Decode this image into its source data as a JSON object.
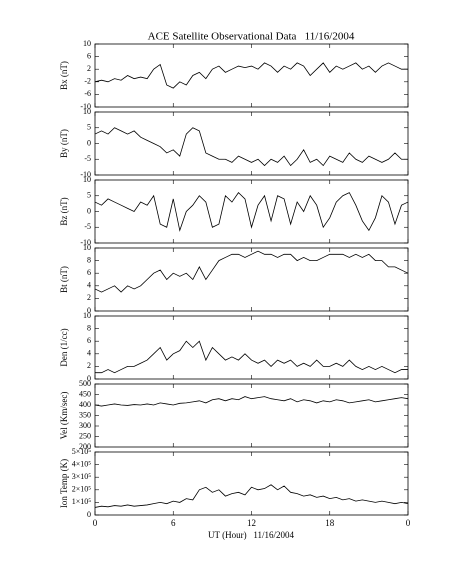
{
  "chart_data": [
    {
      "type": "line",
      "title": "ACE Satellite Observational Data   11/16/2004",
      "ylabel": "Bx (nT)",
      "color": "#000000",
      "x": [
        0,
        0.5,
        1,
        1.5,
        2,
        2.5,
        3,
        3.5,
        4,
        4.5,
        5,
        5.5,
        6,
        6.5,
        7,
        7.5,
        8,
        8.5,
        9,
        9.5,
        10,
        10.5,
        11,
        11.5,
        12,
        12.5,
        13,
        13.5,
        14,
        14.5,
        15,
        15.5,
        16,
        16.5,
        17,
        17.5,
        18,
        18.5,
        19,
        19.5,
        20,
        20.5,
        21,
        21.5,
        22,
        22.5,
        23,
        23.5,
        24
      ],
      "values": [
        -2,
        -1.5,
        -2,
        -1,
        -1.5,
        0,
        -1,
        -0.5,
        -1,
        2,
        3.5,
        -3,
        -4,
        -2,
        -3,
        0,
        1,
        -1,
        2,
        3,
        1,
        2,
        3,
        2.5,
        3,
        2,
        4,
        3,
        1,
        3,
        2,
        4,
        3,
        0,
        2,
        4,
        1,
        3,
        2,
        3,
        4,
        2,
        3,
        1,
        3,
        4,
        3,
        2,
        2
      ],
      "ylim": [
        -10,
        10
      ],
      "yticks": [
        -10,
        -6,
        -2,
        2,
        6,
        10
      ]
    },
    {
      "type": "line",
      "ylabel": "By (nT)",
      "color": "#000000",
      "x": [
        0,
        0.5,
        1,
        1.5,
        2,
        2.5,
        3,
        3.5,
        4,
        4.5,
        5,
        5.5,
        6,
        6.5,
        7,
        7.5,
        8,
        8.5,
        9,
        9.5,
        10,
        10.5,
        11,
        11.5,
        12,
        12.5,
        13,
        13.5,
        14,
        14.5,
        15,
        15.5,
        16,
        16.5,
        17,
        17.5,
        18,
        18.5,
        19,
        19.5,
        20,
        20.5,
        21,
        21.5,
        22,
        22.5,
        23,
        23.5,
        24
      ],
      "values": [
        3,
        4,
        3,
        5,
        4,
        3,
        4,
        2,
        1,
        0,
        -1,
        -3,
        -2,
        -4,
        3,
        5,
        4,
        -3,
        -4,
        -5,
        -5,
        -6,
        -4,
        -5,
        -6,
        -5,
        -7,
        -5,
        -6,
        -4,
        -7,
        -5,
        -2,
        -6,
        -5,
        -7,
        -4,
        -5,
        -6,
        -3,
        -5,
        -6,
        -4,
        -5,
        -6,
        -5,
        -3,
        -5,
        -5
      ],
      "ylim": [
        -10,
        10
      ],
      "yticks": [
        -10,
        -5,
        0,
        5,
        10
      ]
    },
    {
      "type": "line",
      "ylabel": "Bz (nT)",
      "color": "#000000",
      "x": [
        0,
        0.5,
        1,
        1.5,
        2,
        2.5,
        3,
        3.5,
        4,
        4.5,
        5,
        5.5,
        6,
        6.5,
        7,
        7.5,
        8,
        8.5,
        9,
        9.5,
        10,
        10.5,
        11,
        11.5,
        12,
        12.5,
        13,
        13.5,
        14,
        14.5,
        15,
        15.5,
        16,
        16.5,
        17,
        17.5,
        18,
        18.5,
        19,
        19.5,
        20,
        20.5,
        21,
        21.5,
        22,
        22.5,
        23,
        23.5,
        24
      ],
      "values": [
        3,
        2,
        4,
        3,
        2,
        1,
        0,
        3,
        2,
        5,
        -4,
        -5,
        4,
        -6,
        0,
        2,
        5,
        3,
        -5,
        -4,
        5,
        3,
        6,
        4,
        -5,
        2,
        5,
        -3,
        5,
        4,
        -4,
        3,
        0,
        5,
        2,
        -5,
        -2,
        3,
        5,
        6,
        2,
        -3,
        -6,
        -2,
        5,
        3,
        -4,
        2,
        3
      ],
      "ylim": [
        -10,
        10
      ],
      "yticks": [
        -10,
        -5,
        0,
        5,
        10
      ]
    },
    {
      "type": "line",
      "ylabel": "Bt (nT)",
      "color": "#000000",
      "x": [
        0,
        0.5,
        1,
        1.5,
        2,
        2.5,
        3,
        3.5,
        4,
        4.5,
        5,
        5.5,
        6,
        6.5,
        7,
        7.5,
        8,
        8.5,
        9,
        9.5,
        10,
        10.5,
        11,
        11.5,
        12,
        12.5,
        13,
        13.5,
        14,
        14.5,
        15,
        15.5,
        16,
        16.5,
        17,
        17.5,
        18,
        18.5,
        19,
        19.5,
        20,
        20.5,
        21,
        21.5,
        22,
        22.5,
        23,
        23.5,
        24
      ],
      "values": [
        3.5,
        3,
        3.5,
        4,
        3,
        4,
        3.5,
        4,
        5,
        6,
        6.5,
        5,
        6,
        5.5,
        6,
        5,
        7,
        5,
        6.5,
        8,
        8.5,
        9,
        9,
        8.5,
        9,
        9.5,
        9,
        9,
        8.5,
        9,
        9,
        8,
        8.5,
        8,
        8,
        8.5,
        9,
        9,
        9,
        8.5,
        9,
        8.5,
        9,
        8,
        8,
        7,
        7,
        6.5,
        6
      ],
      "ylim": [
        0,
        10
      ],
      "yticks": [
        0,
        2,
        4,
        6,
        8,
        10
      ]
    },
    {
      "type": "line",
      "ylabel": "Den (1/cc)",
      "color": "#000000",
      "x": [
        0,
        0.5,
        1,
        1.5,
        2,
        2.5,
        3,
        3.5,
        4,
        4.5,
        5,
        5.5,
        6,
        6.5,
        7,
        7.5,
        8,
        8.5,
        9,
        9.5,
        10,
        10.5,
        11,
        11.5,
        12,
        12.5,
        13,
        13.5,
        14,
        14.5,
        15,
        15.5,
        16,
        16.5,
        17,
        17.5,
        18,
        18.5,
        19,
        19.5,
        20,
        20.5,
        21,
        21.5,
        22,
        22.5,
        23,
        23.5,
        24
      ],
      "values": [
        1,
        1,
        1.5,
        1,
        1.5,
        2,
        2,
        2.5,
        3,
        4,
        5,
        3,
        4,
        4.5,
        6,
        5,
        6,
        3,
        5,
        4,
        3,
        3.5,
        3,
        4,
        3,
        2.5,
        3,
        2,
        3,
        2.5,
        3,
        2,
        2.5,
        2,
        3,
        2,
        2,
        2.5,
        2,
        3,
        2,
        1.5,
        2,
        1.5,
        2,
        1.5,
        1,
        1.5,
        1.5
      ],
      "ylim": [
        0,
        10
      ],
      "yticks": [
        0,
        2,
        4,
        6,
        8,
        10
      ]
    },
    {
      "type": "line",
      "ylabel": "Vel (Km/sec)",
      "color": "#000000",
      "x": [
        0,
        0.5,
        1,
        1.5,
        2,
        2.5,
        3,
        3.5,
        4,
        4.5,
        5,
        5.5,
        6,
        6.5,
        7,
        7.5,
        8,
        8.5,
        9,
        9.5,
        10,
        10.5,
        11,
        11.5,
        12,
        12.5,
        13,
        13.5,
        14,
        14.5,
        15,
        15.5,
        16,
        16.5,
        17,
        17.5,
        18,
        18.5,
        19,
        19.5,
        20,
        20.5,
        21,
        21.5,
        22,
        22.5,
        23,
        23.5,
        24
      ],
      "values": [
        400,
        395,
        400,
        405,
        400,
        398,
        402,
        400,
        405,
        400,
        410,
        405,
        400,
        408,
        410,
        415,
        420,
        410,
        425,
        430,
        420,
        430,
        425,
        440,
        430,
        435,
        440,
        430,
        425,
        420,
        430,
        415,
        425,
        420,
        410,
        420,
        415,
        425,
        420,
        410,
        415,
        420,
        425,
        415,
        420,
        425,
        430,
        435,
        430
      ],
      "ylim": [
        200,
        500
      ],
      "yticks": [
        200,
        250,
        300,
        350,
        400,
        450,
        500
      ]
    },
    {
      "type": "line",
      "ylabel": "Ion Temp (K)",
      "color": "#000000",
      "x": [
        0,
        0.5,
        1,
        1.5,
        2,
        2.5,
        3,
        3.5,
        4,
        4.5,
        5,
        5.5,
        6,
        6.5,
        7,
        7.5,
        8,
        8.5,
        9,
        9.5,
        10,
        10.5,
        11,
        11.5,
        12,
        12.5,
        13,
        13.5,
        14,
        14.5,
        15,
        15.5,
        16,
        16.5,
        17,
        17.5,
        18,
        18.5,
        19,
        19.5,
        20,
        20.5,
        21,
        21.5,
        22,
        22.5,
        23,
        23.5,
        24
      ],
      "values": [
        60000,
        70000,
        65000,
        75000,
        70000,
        80000,
        70000,
        75000,
        80000,
        90000,
        100000,
        90000,
        110000,
        100000,
        130000,
        120000,
        200000,
        220000,
        180000,
        200000,
        150000,
        170000,
        180000,
        160000,
        220000,
        200000,
        210000,
        240000,
        200000,
        230000,
        180000,
        170000,
        150000,
        160000,
        140000,
        150000,
        130000,
        140000,
        120000,
        130000,
        110000,
        120000,
        110000,
        100000,
        110000,
        100000,
        90000,
        100000,
        90000
      ],
      "ylim": [
        0,
        500000
      ],
      "yticks": [
        0,
        {
          "value": 100000,
          "label": "1×10⁵"
        },
        {
          "value": 200000,
          "label": "2×10⁵"
        },
        {
          "value": 300000,
          "label": "3×10⁵"
        },
        {
          "value": 400000,
          "label": "4×10⁵"
        },
        {
          "value": 500000,
          "label": "5×10⁵"
        }
      ],
      "xlim": [
        0,
        24
      ],
      "xticks": [
        0,
        6,
        12,
        18,
        {
          "value": 24,
          "label": "0"
        }
      ],
      "xlabel": "UT (Hour)   11/16/2004"
    }
  ]
}
